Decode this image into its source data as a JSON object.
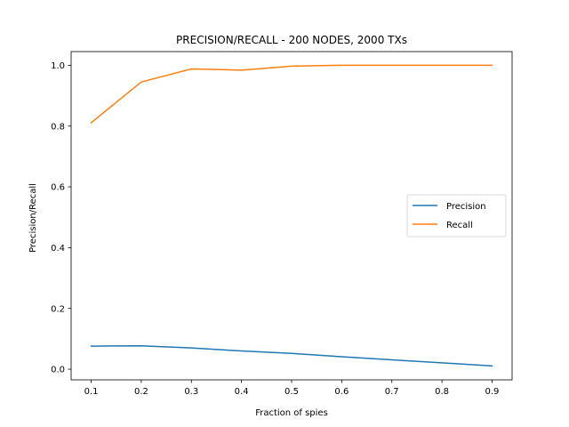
{
  "chart_data": {
    "type": "line",
    "title": "PRECISION/RECALL - 200 NODES, 2000 TXs",
    "xlabel": "Fraction of spies",
    "ylabel": "Precision/Recall",
    "x": [
      0.1,
      0.2,
      0.3,
      0.4,
      0.5,
      0.6,
      0.7,
      0.8,
      0.9
    ],
    "xlim": [
      0.06,
      0.94
    ],
    "ylim": [
      -0.035,
      1.045
    ],
    "xticks": [
      "0.1",
      "0.2",
      "0.3",
      "0.4",
      "0.5",
      "0.6",
      "0.7",
      "0.8",
      "0.9"
    ],
    "yticks": [
      "0.0",
      "0.2",
      "0.4",
      "0.6",
      "0.8",
      "1.0"
    ],
    "grid": false,
    "legend_position": "center-right",
    "series": [
      {
        "name": "Precision",
        "color": "#1f77b4",
        "values": [
          0.076,
          0.077,
          0.07,
          0.06,
          0.052,
          0.041,
          0.031,
          0.021,
          0.011
        ]
      },
      {
        "name": "Recall",
        "color": "#ff7f0e",
        "values": [
          0.811,
          0.945,
          0.988,
          0.984,
          0.997,
          1.0,
          1.0,
          1.0,
          1.0
        ]
      }
    ]
  }
}
